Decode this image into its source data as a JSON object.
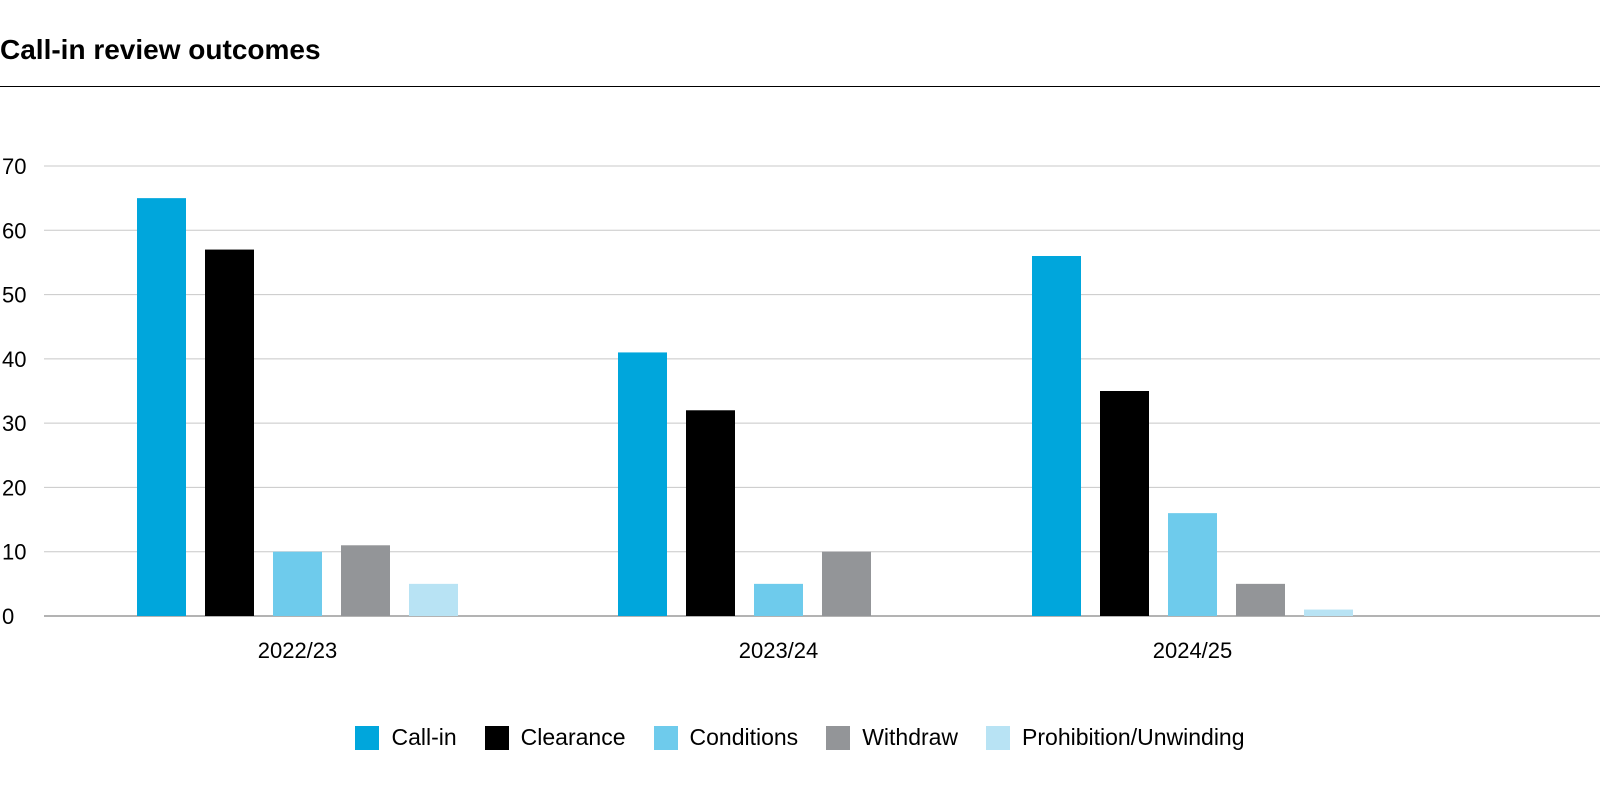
{
  "chart_data": {
    "type": "bar",
    "title": "Call-in review outcomes",
    "categories": [
      "2022/23",
      "2023/24",
      "2024/25"
    ],
    "series": [
      {
        "name": "Call-in",
        "color": "#00a6dc",
        "values": [
          65,
          41,
          56
        ]
      },
      {
        "name": "Clearance",
        "color": "#000000",
        "values": [
          57,
          32,
          35
        ]
      },
      {
        "name": "Conditions",
        "color": "#6ecbec",
        "values": [
          10,
          5,
          16
        ]
      },
      {
        "name": "Withdraw",
        "color": "#939598",
        "values": [
          11,
          10,
          5
        ]
      },
      {
        "name": "Prohibition/Unwinding",
        "color": "#b8e3f4",
        "values": [
          5,
          0,
          1
        ]
      }
    ],
    "ylim": [
      0,
      70
    ],
    "yticks": [
      0,
      10,
      20,
      30,
      40,
      50,
      60,
      70
    ],
    "grid": true,
    "legend": "bottom-center"
  }
}
